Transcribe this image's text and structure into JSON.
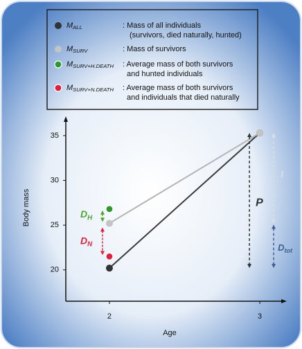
{
  "chart_data": {
    "type": "line",
    "xlabel": "Age",
    "ylabel": "Body mass",
    "xlim": [
      1.71,
      3.17
    ],
    "xticks": [
      2,
      3
    ],
    "ylim": [
      16.5,
      37
    ],
    "yticks": [
      20,
      25,
      30,
      35
    ],
    "series": [
      {
        "name": "M",
        "subscript": "ALL",
        "description": [
          ": Mass of all individuals",
          "(survivors, died naturally, hunted)"
        ],
        "color": "#333333",
        "line_color": "#3a3a3a",
        "x": [
          2,
          3
        ],
        "values": [
          20.2,
          35.3
        ]
      },
      {
        "name": "M",
        "subscript": "SURV",
        "description": [
          ": Mass of survivors"
        ],
        "color": "#c4c4c4",
        "line_color": "#b5b5b5",
        "x": [
          2,
          3
        ],
        "values": [
          25.2,
          35.3
        ]
      },
      {
        "name": "M",
        "subscript": "SURV+H.DEATH",
        "description": [
          ": Average mass of both survivors",
          "and hunted individuals"
        ],
        "color": "#2a9a2a",
        "x": [
          2
        ],
        "values": [
          26.8
        ]
      },
      {
        "name": "M",
        "subscript": "SURV+N.DEATH",
        "description": [
          ": Average mass of both survivors",
          "and individuals that died naturally"
        ],
        "color": "#e0203a",
        "x": [
          2
        ],
        "values": [
          21.5
        ]
      }
    ],
    "annotations": [
      {
        "text": "D",
        "subscript": "H",
        "color": "#4aa832"
      },
      {
        "text": "D",
        "subscript": "N",
        "color": "#e0203a"
      },
      {
        "text": "P",
        "color": "#333333"
      },
      {
        "text": "I",
        "color": "#dddddd"
      },
      {
        "text": "D",
        "subscript": "tot",
        "color": "#3f5f8f"
      }
    ]
  }
}
